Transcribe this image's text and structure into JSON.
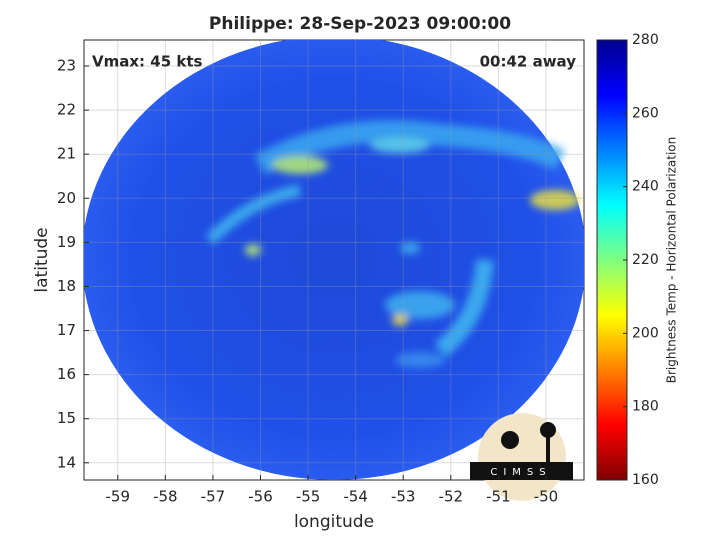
{
  "chart_data": {
    "type": "image",
    "title": "Philippe: 28-Sep-2023 09:00:00",
    "xlabel": "longitude",
    "ylabel": "latitude",
    "annotations": [
      "Vmax: 45 kts",
      "00:42 away"
    ],
    "logo": "CIMSS",
    "xlim": [
      -59.71,
      -49.2
    ],
    "ylim": [
      13.61,
      23.59
    ],
    "xticks": [
      -59,
      -58,
      -57,
      -56,
      -55,
      -54,
      -53,
      -52,
      -51,
      -50
    ],
    "yticks": [
      14,
      15,
      16,
      17,
      18,
      19,
      20,
      21,
      22,
      23
    ],
    "grid": true,
    "colorbar": {
      "label": "Brightness Temp - Horizontal Polarization",
      "lim": [
        160,
        280
      ],
      "ticks": [
        160,
        180,
        200,
        220,
        240,
        260,
        280
      ],
      "colors": [
        "#7f0000",
        "#ff0000",
        "#ff8000",
        "#ffff00",
        "#80ff80",
        "#00ffff",
        "#0080ff",
        "#0000ff",
        "#00008f"
      ]
    }
  }
}
